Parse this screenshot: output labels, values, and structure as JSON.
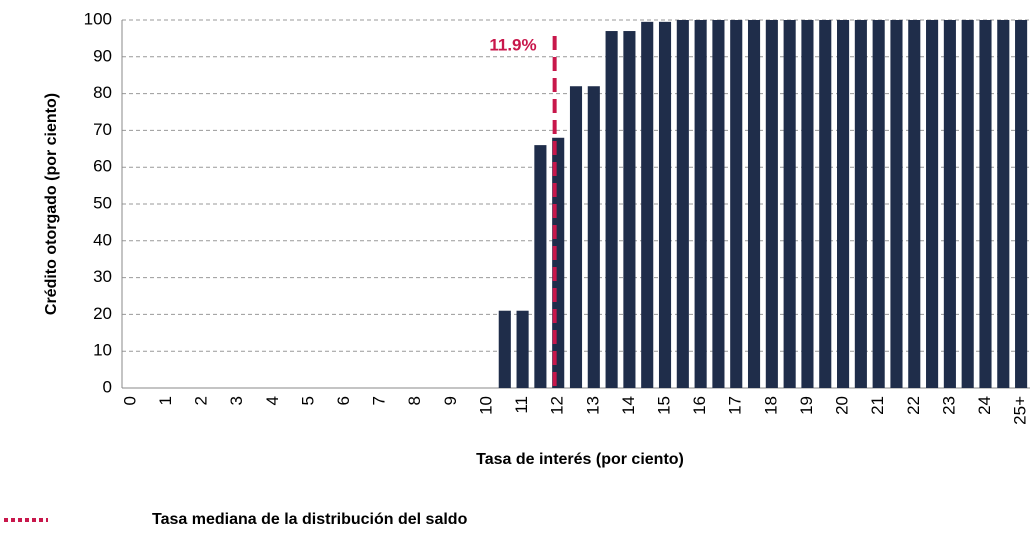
{
  "chart_data": {
    "type": "bar",
    "y_label": "Crédito otorgado (por ciento)",
    "x_label": "Tasa de interés (por ciento)",
    "categories": [
      "0",
      null,
      "1",
      null,
      "2",
      null,
      "3",
      null,
      "4",
      null,
      "5",
      null,
      "6",
      null,
      "7",
      null,
      "8",
      null,
      "9",
      null,
      "10",
      null,
      "11",
      null,
      "12",
      null,
      "13",
      null,
      "14",
      null,
      "15",
      null,
      "16",
      null,
      "17",
      null,
      "18",
      null,
      "19",
      null,
      "20",
      null,
      "21",
      null,
      "22",
      null,
      "23",
      null,
      "24",
      null,
      "25+"
    ],
    "values": [
      0,
      0,
      0,
      0,
      0,
      0,
      0,
      0,
      0,
      0,
      0,
      0,
      0,
      0,
      0,
      0,
      0,
      0,
      0,
      0,
      0,
      21,
      21,
      66,
      68,
      82,
      82,
      97,
      97,
      99.5,
      99.5,
      100,
      100,
      100,
      100,
      100,
      100,
      100,
      100,
      100,
      100,
      100,
      100,
      100,
      100,
      100,
      100,
      100,
      100,
      100,
      100
    ],
    "color": "#1f2d4a",
    "ylim": [
      0,
      100
    ],
    "yticks": [
      0,
      10,
      20,
      30,
      40,
      50,
      60,
      70,
      80,
      90,
      100
    ],
    "grid": true,
    "median_line": {
      "value": 11.9,
      "label": "11.9%",
      "color": "#c8174b"
    },
    "legend": {
      "label": "Tasa mediana de la distribución del saldo"
    }
  }
}
